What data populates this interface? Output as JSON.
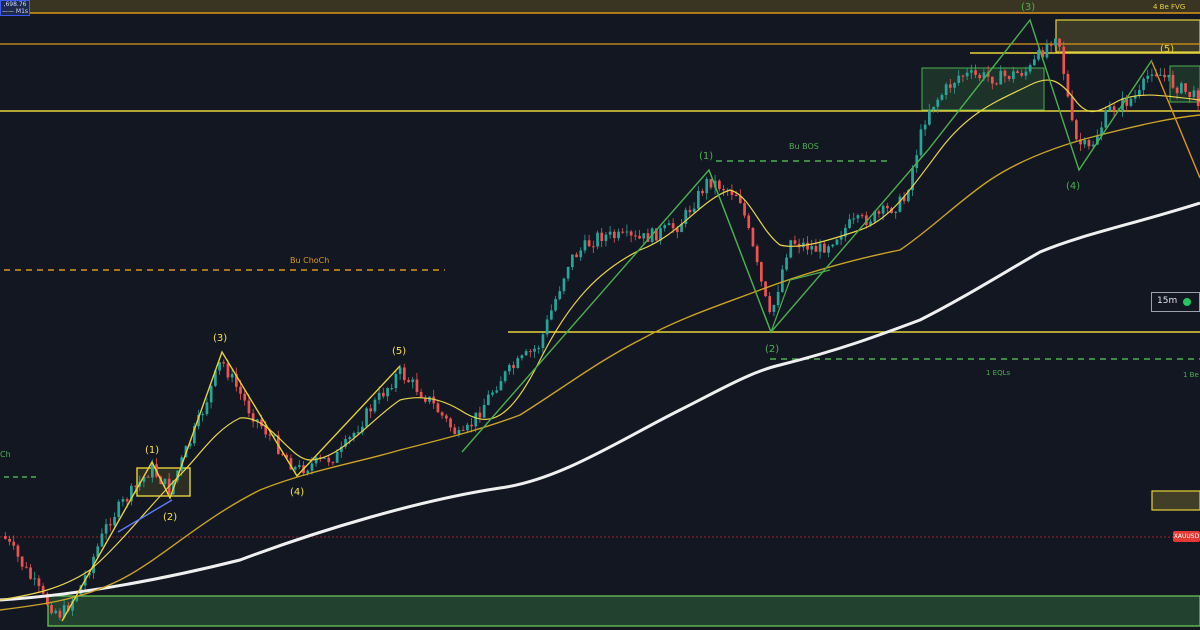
{
  "chart_data": {
    "type": "candlestick",
    "instrument": "XAUUSD",
    "timeframe": "15m",
    "price_badge": {
      "line1": ",698.76",
      "line2": "—— M1s"
    },
    "labels": {
      "bu_choch": "Bu ChoCh",
      "ch_partial": "Ch",
      "bu_bos": "Bu BOS",
      "eqls": "1 EQLs",
      "be_fvg": "4 Be FVG",
      "be_right": "1 Be"
    },
    "waves": {
      "w1_1": "(1)",
      "w1_2": "(2)",
      "w1_3": "(3)",
      "w1_4": "(4)",
      "w1_5": "(5)",
      "w2_1": "(1)",
      "w2_2": "(2)",
      "w2_3": "(3)",
      "w2_4": "(4)",
      "w2_5": "(5)"
    },
    "colors": {
      "background": "#131722",
      "up": "#26a69a",
      "down": "#ef5350",
      "fast_ma": "#e8d44d",
      "slow_ma": "#c9a227",
      "long_ma": "#f0f0f0",
      "yellow_line": "#e6d23a",
      "orange_line": "#d9961a",
      "green": "#4caf50"
    },
    "grid": false
  }
}
